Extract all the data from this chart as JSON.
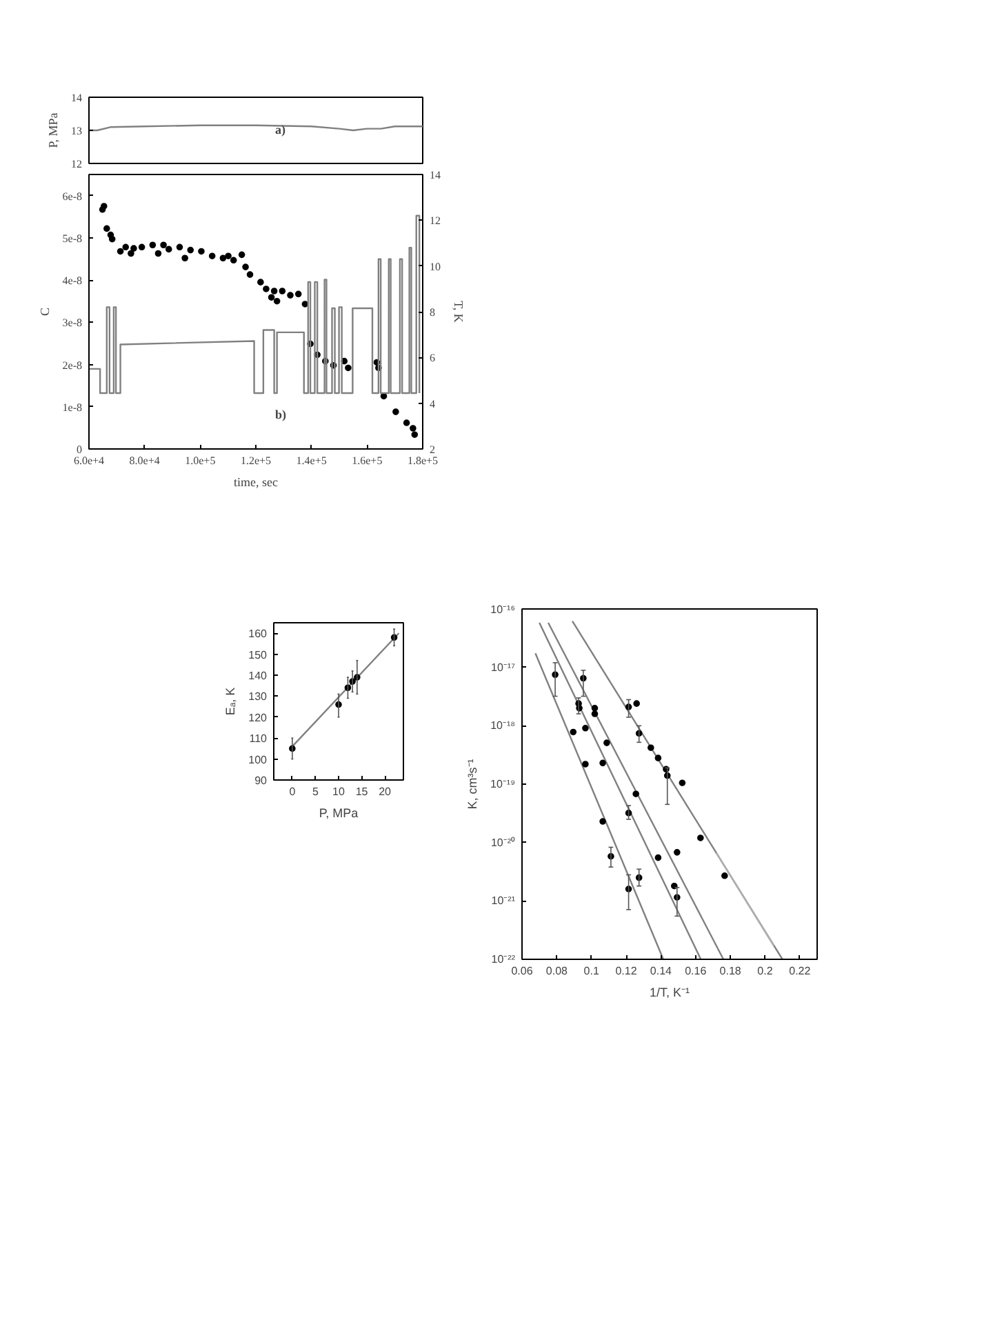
{
  "chart_data": [
    {
      "type": "line",
      "ylabel": "P, MPa",
      "annotations": [
        "a)"
      ],
      "xlim": [
        60000,
        180000
      ],
      "ylim": [
        12,
        14
      ],
      "yticks": [
        12,
        13,
        14
      ],
      "tick_labels": "y",
      "x": [
        60000,
        63000,
        68000,
        80000,
        100000,
        120000,
        140000,
        150000,
        155000,
        160000,
        165000,
        170000,
        180000
      ],
      "series": [
        {
          "color": "#808080",
          "values": [
            13.0,
            13.0,
            13.1,
            13.12,
            13.15,
            13.15,
            13.12,
            13.05,
            13.0,
            13.05,
            13.05,
            13.12,
            13.12
          ]
        }
      ]
    },
    {
      "type": "scatter",
      "xlabel": "time, sec",
      "ylabel": "C",
      "y2label": "T, K",
      "annotations": [
        "b)"
      ],
      "xlim": [
        60000,
        180000
      ],
      "xticks": [
        {
          "value": 60000,
          "label": "6.0e+4"
        },
        {
          "value": 80000,
          "label": "8.0e+4"
        },
        {
          "value": 100000,
          "label": "1.0e+5"
        },
        {
          "value": 120000,
          "label": "1.2e+5"
        },
        {
          "value": 140000,
          "label": "1.4e+5"
        },
        {
          "value": 160000,
          "label": "1.6e+5"
        },
        {
          "value": 180000,
          "label": "1.8e+5"
        }
      ],
      "ylim": [
        0,
        6.5e-08
      ],
      "yticks": [
        0,
        {
          "value": 1e-08,
          "label": "1e-8"
        },
        {
          "value": 2e-08,
          "label": "2e-8"
        },
        {
          "value": 3e-08,
          "label": "3e-8"
        },
        {
          "value": 4e-08,
          "label": "4e-8"
        },
        {
          "value": 5e-08,
          "label": "5e-8"
        },
        {
          "value": 6e-08,
          "label": "6e-8"
        }
      ],
      "y2lim": [
        2,
        14
      ],
      "y2ticks": [
        2,
        4,
        6,
        8,
        10,
        12,
        14
      ],
      "series": [
        {
          "type": "scatter",
          "marker": "circle",
          "color": "#000000",
          "x": [
            64850,
            65400,
            66400,
            67800,
            68350,
            71300,
            73200,
            75100,
            76100,
            79000,
            82900,
            84900,
            86800,
            88700,
            92600,
            94500,
            96500,
            100400,
            104300,
            108200,
            110100,
            112000,
            114950,
            116300,
            117900,
            121700,
            123700,
            125600,
            126600,
            127600,
            129500,
            132400,
            135300,
            137700,
            139600,
            142100,
            145000,
            147900,
            151800,
            153200,
            163500,
            164100,
            166000,
            170300,
            174200,
            176500,
            177100
          ],
          "values": [
            5.67e-08,
            5.75e-08,
            5.22e-08,
            5.07e-08,
            4.97e-08,
            4.68e-08,
            4.78e-08,
            4.63e-08,
            4.75e-08,
            4.78e-08,
            4.83e-08,
            4.63e-08,
            4.83e-08,
            4.73e-08,
            4.78e-08,
            4.52e-08,
            4.71e-08,
            4.68e-08,
            4.57e-08,
            4.52e-08,
            4.57e-08,
            4.47e-08,
            4.6e-08,
            4.31e-08,
            4.13e-08,
            3.95e-08,
            3.79e-08,
            3.59e-08,
            3.74e-08,
            3.5e-08,
            3.74e-08,
            3.64e-08,
            3.67e-08,
            3.43e-08,
            2.49e-08,
            2.23e-08,
            2.08e-08,
            1.98e-08,
            2.08e-08,
            1.92e-08,
            2.05e-08,
            1.92e-08,
            1.25e-08,
            8.8e-09,
            6.2e-09,
            4.9e-09,
            3.4e-09
          ]
        },
        {
          "type": "line",
          "axis": "y2",
          "color": "#808080",
          "x": [
            60000,
            64000,
            64000,
            66400,
            66400,
            67400,
            67400,
            68900,
            68900,
            69700,
            69700,
            71300,
            71300,
            119400,
            119400,
            122700,
            122700,
            126600,
            126600,
            127600,
            127600,
            137300,
            137300,
            138800,
            138800,
            139600,
            139600,
            141200,
            141200,
            142100,
            142100,
            144700,
            144700,
            145400,
            145400,
            147400,
            147400,
            148400,
            148400,
            149900,
            149900,
            150900,
            150900,
            154800,
            154800,
            161900,
            161900,
            164100,
            164100,
            164900,
            164900,
            167800,
            167800,
            168500,
            168500,
            171800,
            171800,
            172600,
            172600,
            175200,
            175200,
            175900,
            175900,
            177700,
            177700,
            178800,
            178800
          ],
          "values": [
            5.5,
            5.5,
            4.44,
            4.44,
            8.2,
            8.2,
            4.44,
            4.44,
            8.2,
            8.2,
            4.44,
            4.44,
            6.57,
            6.72,
            4.44,
            4.44,
            7.2,
            7.2,
            4.44,
            4.44,
            7.1,
            7.1,
            4.44,
            4.44,
            9.3,
            9.3,
            4.44,
            4.44,
            9.3,
            9.3,
            4.44,
            4.44,
            9.4,
            9.4,
            4.44,
            4.44,
            8.15,
            8.15,
            4.44,
            4.44,
            8.2,
            8.2,
            4.44,
            4.44,
            8.15,
            8.15,
            4.44,
            4.44,
            10.3,
            10.3,
            4.44,
            4.44,
            10.3,
            10.3,
            4.44,
            4.44,
            10.3,
            10.3,
            4.44,
            4.44,
            10.8,
            10.8,
            4.44,
            4.44,
            12.2,
            12.2,
            4.44
          ]
        }
      ]
    },
    {
      "type": "scatter",
      "xlabel": "1/T, K⁻¹",
      "ylabel": "K, cm³s⁻¹",
      "log": "y",
      "xlim": [
        0.06,
        0.23
      ],
      "xticks": [
        0.06,
        0.08,
        0.1,
        0.12,
        0.14,
        0.16,
        0.18,
        0.2,
        0.22
      ],
      "ylim": [
        1e-22,
        1e-16
      ],
      "yticks": [
        {
          "value": 1e-22,
          "label": "10⁻²²"
        },
        {
          "value": 1e-21,
          "label": "10⁻²¹"
        },
        {
          "value": 1e-20,
          "label": "10⁻²⁰"
        },
        {
          "value": 1e-19,
          "label": "10⁻¹⁹"
        },
        {
          "value": 1e-18,
          "label": "10⁻¹⁸"
        },
        {
          "value": 1e-17,
          "label": "10⁻¹⁷"
        },
        {
          "value": 1e-16,
          "label": "10⁻¹⁶"
        }
      ],
      "series": [
        {
          "type": "line",
          "color": "#808080",
          "x": [
            0.0677,
            0.1414
          ],
          "values": [
            1.74e-17,
            1e-22
          ]
        },
        {
          "type": "line",
          "color": "#808080",
          "x": [
            0.07,
            0.163
          ],
          "values": [
            5.8e-17,
            1e-22
          ]
        },
        {
          "type": "line",
          "color": "#808080",
          "x": [
            0.0751,
            0.176
          ],
          "values": [
            5.8e-17,
            1e-22
          ]
        },
        {
          "type": "line",
          "color": "#808080",
          "x": [
            0.089,
            0.21
          ],
          "values": [
            6.2e-17,
            1e-22
          ]
        },
        {
          "type": "line",
          "color": "#b0b0b0",
          "x": [
            0.172,
            0.205
          ],
          "values": [
            6.6e-21,
            1.7e-22
          ]
        },
        {
          "type": "scatter",
          "marker": "circle",
          "color": "#000000",
          "x": [
            0.0791,
            0.0895,
            0.0926,
            0.093,
            0.0953,
            0.0965,
            0.0965,
            0.1019,
            0.1019,
            0.1065,
            0.1065,
            0.1088,
            0.1112,
            0.1214,
            0.1214,
            0.1214,
            0.126,
            0.1274,
            0.1256,
            0.1274,
            0.1342,
            0.1384,
            0.1384,
            0.143,
            0.1437,
            0.1477,
            0.1493,
            0.1493,
            0.1523,
            0.1628,
            0.1767
          ],
          "values": [
            7.5e-18,
            7.8e-19,
            2.4e-18,
            2e-18,
            6.5e-18,
            2.2e-19,
            9.1e-19,
            2e-18,
            1.6e-18,
            2.3e-19,
            2.3e-20,
            5.1e-19,
            5.8e-21,
            2.1e-18,
            3.2e-20,
            1.6e-21,
            2.4e-18,
            7.4e-19,
            6.8e-20,
            2.5e-21,
            4.2e-19,
            2.8e-19,
            5.5e-21,
            1.8e-19,
            1.4e-19,
            1.8e-21,
            1.15e-21,
            6.8e-21,
            1.05e-19,
            1.2e-20,
            2.7e-21
          ],
          "errors": [
            [
              3.2e-18,
              1.2e-17
            ],
            null,
            [
              1.6e-18,
              3e-18
            ],
            null,
            [
              3.2e-18,
              8.9e-18
            ],
            null,
            null,
            null,
            null,
            null,
            null,
            null,
            [
              3.8e-21,
              8.3e-21
            ],
            [
              1.4e-18,
              2.8e-18
            ],
            [
              2.5e-20,
              4.3e-20
            ],
            [
              7.1e-22,
              2.8e-21
            ],
            null,
            [
              5.2e-19,
              1e-18
            ],
            null,
            [
              1.8e-21,
              3.5e-21
            ],
            null,
            null,
            null,
            null,
            [
              4.5e-20,
              1.9e-19
            ],
            null,
            [
              5.5e-22,
              1.7e-21
            ],
            null,
            null,
            null,
            null
          ]
        }
      ]
    },
    {
      "type": "scatter",
      "xlabel": "P, MPa",
      "ylabel": "Eₐ, K",
      "xlim": [
        -4,
        24
      ],
      "xticks": [
        0,
        5,
        10,
        15,
        20
      ],
      "ylim": [
        90,
        165
      ],
      "yticks": [
        90,
        100,
        110,
        120,
        130,
        140,
        150,
        160
      ],
      "series": [
        {
          "type": "line",
          "color": "#808080",
          "x": [
            0,
            23
          ],
          "values": [
            106,
            160
          ]
        },
        {
          "type": "scatter",
          "marker": "circle",
          "color": "#000000",
          "x": [
            0,
            10,
            12,
            13,
            14,
            22
          ],
          "values": [
            105,
            126,
            134,
            137,
            139,
            158
          ],
          "errors": [
            [
              100,
              110
            ],
            [
              120,
              131
            ],
            [
              129,
              139
            ],
            [
              132,
              142
            ],
            [
              131,
              147
            ],
            [
              154,
              162
            ]
          ]
        }
      ]
    }
  ]
}
